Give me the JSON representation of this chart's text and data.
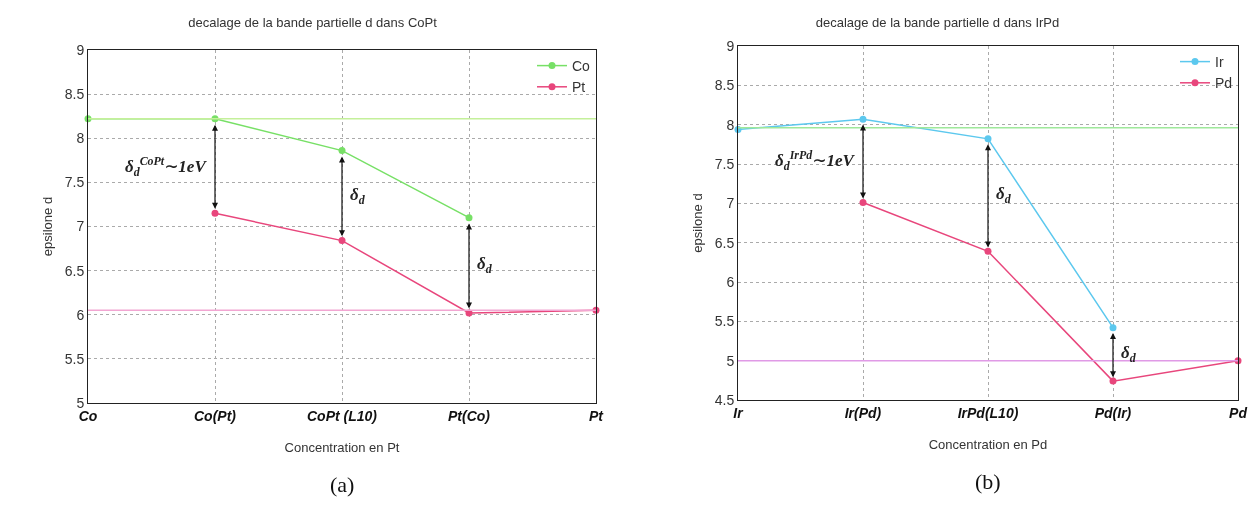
{
  "chart_data": [
    {
      "type": "line",
      "title": "decalage de la bande partielle d dans CoPt",
      "xlabel": "Concentration en Pt",
      "ylabel": "epsilone d",
      "categories": [
        "Co",
        "Co(Pt)",
        "CoPt (L10)",
        "Pt(Co)",
        "Pt"
      ],
      "series": [
        {
          "name": "Co",
          "color": "#77e066",
          "values": [
            8.22,
            8.22,
            7.86,
            7.1,
            null
          ]
        },
        {
          "name": "Pt",
          "color": "#e8467c",
          "values": [
            null,
            7.15,
            6.84,
            6.02,
            6.05
          ]
        }
      ],
      "ylim": [
        5,
        9
      ],
      "yticks": [
        5,
        5.5,
        6,
        6.5,
        7,
        7.5,
        8,
        8.5,
        9
      ],
      "grid": true,
      "legend": "top right",
      "marker": "circle",
      "ref_lines": [
        {
          "axis": "y",
          "value": 8.22,
          "color": "#c4f09a"
        },
        {
          "axis": "y",
          "value": 6.05,
          "color": "#f2a6d2"
        }
      ],
      "annotations": [
        "δ$_{d}$$^{CoPt}$∼1eV",
        "δ$_{d}$",
        "δ$_{d}$",
        "(a)"
      ]
    },
    {
      "type": "line",
      "title": "decalage de la bande partielle d dans IrPd",
      "xlabel": "Concentration en Pd",
      "ylabel": "epsilone d",
      "categories": [
        "Ir",
        "Ir(Pd)",
        "IrPd(L10)",
        "Pd(Ir)",
        "Pd"
      ],
      "series": [
        {
          "name": "Ir",
          "color": "#5cc8ee",
          "values": [
            7.94,
            8.07,
            7.82,
            5.42,
            null
          ]
        },
        {
          "name": "Pd",
          "color": "#e8467c",
          "values": [
            null,
            7.01,
            6.39,
            4.74,
            5.0
          ]
        }
      ],
      "ylim": [
        4.5,
        9
      ],
      "yticks": [
        4.5,
        5,
        5.5,
        6,
        6.5,
        7,
        7.5,
        8,
        8.5,
        9
      ],
      "grid": true,
      "legend": "top right",
      "marker": "circle",
      "ref_lines": [
        {
          "axis": "y",
          "value": 7.96,
          "color": "#9ee89a"
        },
        {
          "axis": "y",
          "value": 5.0,
          "color": "#e09ae6"
        }
      ],
      "annotations": [
        "δ$_{d}$$^{IrPd}$∼1eV",
        "δ$_{d}$",
        "δ$_{d}$",
        "(b)"
      ]
    }
  ]
}
